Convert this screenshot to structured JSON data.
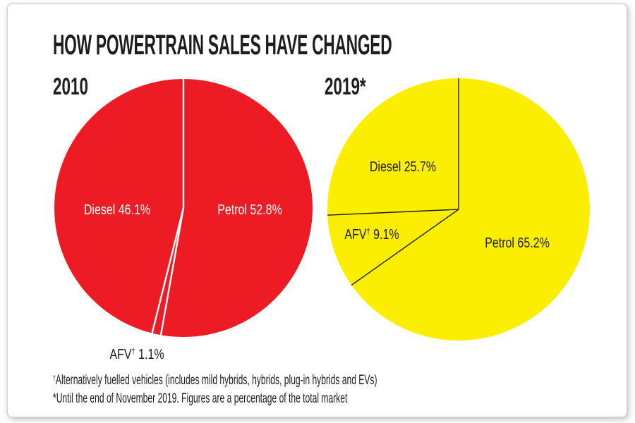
{
  "title": "HOW POWERTRAIN SALES HAVE CHANGED",
  "chart_data": [
    {
      "type": "pie",
      "title": "2010",
      "color": "#ed1c24",
      "divider_color": "#ffffff",
      "divider_width": 2.4,
      "label_color": "#ffffff",
      "start_angle": "12 o'clock",
      "direction": "clockwise",
      "units": "%",
      "slices": [
        {
          "name": "Petrol",
          "value": 52.8,
          "label": "Petrol 52.8%"
        },
        {
          "name": "AFV",
          "value": 1.1,
          "label_prefix": "AFV",
          "label_dagger": "†",
          "label_suffix": " 1.1%"
        },
        {
          "name": "Diesel",
          "value": 46.1,
          "label": "Diesel 46.1%"
        }
      ]
    },
    {
      "type": "pie",
      "title": "2019*",
      "color": "#fcee00",
      "divider_color": "#1d1d1b",
      "divider_width": 1.4,
      "label_color": "#1d1d1b",
      "start_angle": "12 o'clock",
      "direction": "clockwise",
      "units": "%",
      "slices": [
        {
          "name": "Petrol",
          "value": 65.2,
          "label": "Petrol 65.2%"
        },
        {
          "name": "AFV",
          "value": 9.1,
          "label_prefix": "AFV",
          "label_dagger": "†",
          "label_suffix": " 9.1%"
        },
        {
          "name": "Diesel",
          "value": 25.7,
          "label": "Diesel 25.7%"
        }
      ]
    }
  ],
  "footnotes": {
    "dagger": "†",
    "line1": "Alternatively fuelled vehicles (includes mild hybrids, hybrids, plug-in hybrids and EVs)",
    "line2": "*Until the end of November 2019. Figures are a percentage of the total market"
  }
}
